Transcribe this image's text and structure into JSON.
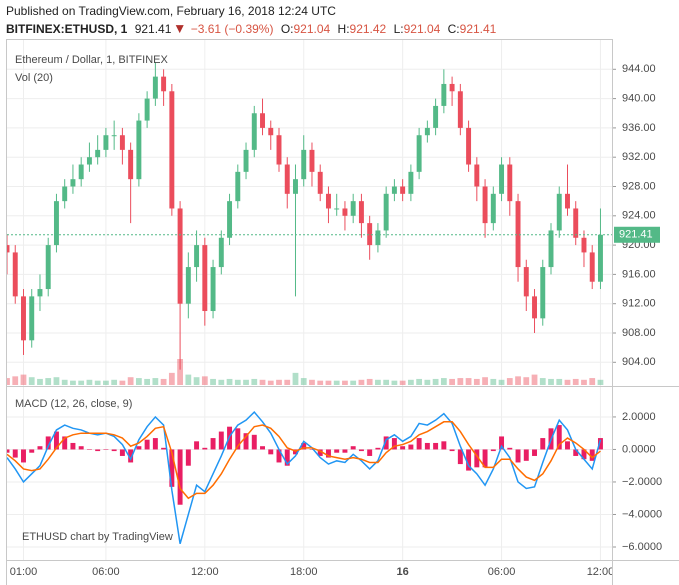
{
  "chart_data": {
    "type": "candlestick",
    "published": "Published on TradingView.com, February 16, 2018 12:24 UTC",
    "symbol": "BITFINEX:ETHUSD, 1",
    "change": "−3.61 (−0.39%)",
    "ohlc_labels": [
      "O:",
      "H:",
      "L:",
      "C:"
    ],
    "ohlc": [
      921.04,
      921.42,
      921.04,
      921.41
    ],
    "title": "Ethereum / Dollar, 1, BITFINEX",
    "volume_label": "Vol (20)",
    "watermark": "ETHUSD chart by TradingView",
    "up_color": "#53b987",
    "down_color": "#eb4d5c",
    "grid": true,
    "x": [
      0,
      0.5,
      1,
      1.5,
      2,
      2.5,
      3,
      3.5,
      4,
      4.5,
      5,
      5.5,
      6,
      6.5,
      7,
      7.5,
      8,
      8.5,
      9,
      9.5,
      10,
      10.5,
      11,
      11.5,
      12,
      12.5,
      13,
      13.5,
      14,
      14.5,
      15,
      15.5,
      16,
      16.5,
      17,
      17.5,
      18,
      18.5,
      19,
      19.5,
      20,
      20.5,
      21,
      21.5,
      22,
      22.5,
      23,
      23.5,
      24,
      24.5,
      25,
      25.5,
      26,
      26.5,
      27,
      27.5,
      28,
      28.5,
      29,
      29.5,
      30,
      30.5,
      31,
      31.5,
      32,
      32.5,
      33,
      33.5,
      34,
      34.5,
      35,
      35.5,
      36
    ],
    "open": [
      920,
      919,
      913,
      907,
      913,
      914,
      920,
      926,
      928,
      929,
      931,
      932,
      933,
      935,
      935,
      933,
      929,
      937,
      940,
      943,
      941,
      925,
      912,
      917,
      920,
      911,
      917,
      921,
      926,
      930,
      933,
      938,
      936,
      935,
      931,
      927,
      929,
      933,
      930,
      927,
      925,
      925,
      924,
      926,
      923,
      920,
      922,
      927,
      928,
      927,
      930,
      935,
      936,
      939,
      942,
      941,
      936,
      931,
      928,
      923,
      927,
      931,
      926,
      917,
      913,
      910,
      917,
      922,
      927,
      925,
      921,
      919,
      915
    ],
    "high": [
      921.5,
      920,
      914,
      914,
      916,
      921,
      927,
      929,
      931,
      932,
      934,
      935,
      936,
      937,
      936,
      934,
      938,
      941,
      945,
      944,
      942,
      926,
      919,
      922,
      921,
      918,
      922,
      927,
      931,
      934,
      939,
      940,
      937,
      936,
      932,
      931,
      935,
      934,
      931,
      928,
      927,
      926,
      927,
      927,
      924,
      923,
      928,
      929,
      929,
      931,
      936,
      937,
      940,
      944,
      943,
      942,
      937,
      932,
      929,
      928,
      932,
      932,
      927,
      918,
      914,
      918,
      923,
      928,
      931,
      926,
      922,
      920,
      925
    ],
    "low": [
      916,
      912,
      905,
      906,
      911,
      913,
      919,
      925,
      927,
      928,
      930,
      931,
      932,
      933,
      931,
      923,
      928,
      936,
      939,
      939,
      924,
      903,
      910,
      915,
      909,
      910,
      916,
      920,
      925,
      929,
      932,
      935,
      933,
      930,
      925,
      913,
      928,
      928,
      926,
      923,
      924,
      922,
      923,
      921,
      918,
      919,
      921,
      926,
      926,
      926,
      929,
      934,
      935,
      938,
      939,
      935,
      930,
      926,
      921,
      922,
      926,
      924,
      915,
      911,
      908,
      909,
      916,
      921,
      924,
      920,
      917,
      914,
      914
    ],
    "close": [
      919,
      913,
      907,
      913,
      914,
      920,
      926,
      928,
      929,
      931,
      932,
      933,
      935,
      935,
      933,
      929,
      937,
      940,
      943,
      941,
      925,
      912,
      917,
      920,
      911,
      917,
      921,
      926,
      930,
      933,
      938,
      936,
      935,
      931,
      927,
      929,
      933,
      930,
      927,
      925,
      925,
      924,
      926,
      923,
      920,
      922,
      927,
      928,
      927,
      930,
      935,
      936,
      939,
      942,
      941,
      936,
      931,
      928,
      923,
      927,
      931,
      926,
      917,
      913,
      910,
      917,
      922,
      927,
      925,
      921,
      919,
      915,
      921.41
    ],
    "volume": [
      8,
      10,
      12,
      9,
      7,
      8,
      9,
      6,
      5,
      5,
      6,
      5,
      5,
      6,
      5,
      9,
      8,
      7,
      8,
      7,
      14,
      30,
      12,
      9,
      10,
      7,
      6,
      7,
      6,
      6,
      7,
      6,
      5,
      6,
      6,
      14,
      8,
      6,
      5,
      5,
      5,
      5,
      5,
      6,
      7,
      6,
      6,
      5,
      5,
      6,
      7,
      6,
      7,
      8,
      7,
      8,
      8,
      7,
      9,
      7,
      6,
      8,
      10,
      9,
      12,
      8,
      7,
      7,
      6,
      7,
      6,
      8,
      6
    ],
    "xlim": [
      0,
      36.7
    ],
    "xticks": [
      {
        "value": 1,
        "label": "01:00"
      },
      {
        "value": 6,
        "label": "06:00"
      },
      {
        "value": 12,
        "label": "12:00"
      },
      {
        "value": 18,
        "label": "18:00"
      },
      {
        "value": 24,
        "label": "16"
      },
      {
        "value": 30,
        "label": "06:00"
      },
      {
        "value": 36,
        "label": "12:00"
      }
    ],
    "ylim": [
      900.9,
      948.0
    ],
    "yticks": [
      {
        "value": 904,
        "label": "904.00"
      },
      {
        "value": 908,
        "label": "908.00"
      },
      {
        "value": 912,
        "label": "912.00"
      },
      {
        "value": 916,
        "label": "916.00"
      },
      {
        "value": 920,
        "label": "920.00"
      },
      {
        "value": 924,
        "label": "924.00"
      },
      {
        "value": 928,
        "label": "928.00"
      },
      {
        "value": 932,
        "label": "932.00"
      },
      {
        "value": 936,
        "label": "936.00"
      },
      {
        "value": 940,
        "label": "940.00"
      },
      {
        "value": 944,
        "label": "944.00"
      }
    ],
    "indicator": {
      "type": "macd",
      "title": "MACD (12, 26, close, 9)",
      "macd_color": "#2196f3",
      "signal_color": "#ff6d00",
      "histogram_color": "#e91e63",
      "macd": [
        -0.5,
        -1.2,
        -2.0,
        -1.5,
        -1.0,
        0.2,
        1.2,
        1.5,
        1.3,
        1.2,
        1.0,
        0.9,
        1.0,
        0.8,
        0.3,
        -0.6,
        0.6,
        1.4,
        2.0,
        1.5,
        -2.5,
        -5.8,
        -4.0,
        -2.2,
        -2.6,
        -1.5,
        -0.4,
        0.8,
        1.5,
        1.8,
        2.3,
        1.7,
        1.0,
        0.0,
        -0.9,
        -0.4,
        0.5,
        0.1,
        -0.5,
        -0.9,
        -0.7,
        -0.8,
        -0.3,
        -0.7,
        -1.2,
        -0.7,
        0.6,
        0.9,
        0.5,
        0.8,
        1.6,
        1.5,
        1.8,
        2.2,
        1.6,
        0.2,
        -1.0,
        -1.5,
        -2.2,
        -1.2,
        0.2,
        -0.5,
        -2.0,
        -2.4,
        -2.3,
        -0.8,
        0.6,
        1.8,
        1.2,
        0.0,
        -0.6,
        -1.2,
        0.6
      ],
      "signal": [
        -0.3,
        -0.7,
        -1.2,
        -1.3,
        -1.2,
        -0.6,
        0.1,
        0.7,
        0.9,
        1.0,
        1.0,
        1.0,
        1.0,
        0.9,
        0.7,
        0.2,
        0.4,
        0.8,
        1.3,
        1.4,
        -0.2,
        -2.4,
        -3.0,
        -2.7,
        -2.7,
        -2.2,
        -1.5,
        -0.6,
        0.2,
        0.8,
        1.4,
        1.5,
        1.3,
        0.8,
        0.1,
        -0.1,
        0.1,
        0.1,
        -0.1,
        -0.4,
        -0.5,
        -0.6,
        -0.5,
        -0.6,
        -0.8,
        -0.8,
        -0.2,
        0.2,
        0.3,
        0.5,
        0.9,
        1.1,
        1.4,
        1.7,
        1.7,
        1.1,
        0.3,
        -0.4,
        -1.1,
        -1.1,
        -0.6,
        -0.6,
        -1.2,
        -1.7,
        -1.9,
        -1.5,
        -0.7,
        0.3,
        0.7,
        0.4,
        0.0,
        -0.5,
        -0.1
      ],
      "histogram": [
        -0.2,
        -0.5,
        -0.8,
        -0.2,
        0.2,
        0.8,
        1.1,
        0.8,
        0.4,
        0.2,
        0.0,
        -0.1,
        0.0,
        -0.1,
        -0.4,
        -0.8,
        0.2,
        0.6,
        0.7,
        0.1,
        -2.3,
        -3.4,
        -1.0,
        0.5,
        0.1,
        0.7,
        1.1,
        1.4,
        1.3,
        1.0,
        0.9,
        0.2,
        -0.3,
        -0.8,
        -1.0,
        -0.3,
        0.4,
        0.0,
        -0.4,
        -0.5,
        -0.2,
        -0.2,
        0.2,
        -0.1,
        -0.4,
        0.1,
        0.8,
        0.7,
        0.2,
        0.3,
        0.7,
        0.4,
        0.4,
        0.5,
        -0.1,
        -0.9,
        -1.3,
        -1.1,
        -1.1,
        -0.1,
        0.8,
        0.1,
        -0.8,
        -0.7,
        -0.4,
        0.7,
        1.3,
        1.5,
        0.5,
        -0.4,
        -0.6,
        -0.7,
        0.7
      ],
      "ylim": [
        -6.8,
        3.78
      ],
      "yticks": [
        {
          "value": 2,
          "label": "2.0000"
        },
        {
          "value": 0,
          "label": "0.0000"
        },
        {
          "value": -2,
          "label": "−2.0000"
        },
        {
          "value": -4,
          "label": "−4.0000"
        },
        {
          "value": -6,
          "label": "−6.0000"
        }
      ]
    }
  }
}
